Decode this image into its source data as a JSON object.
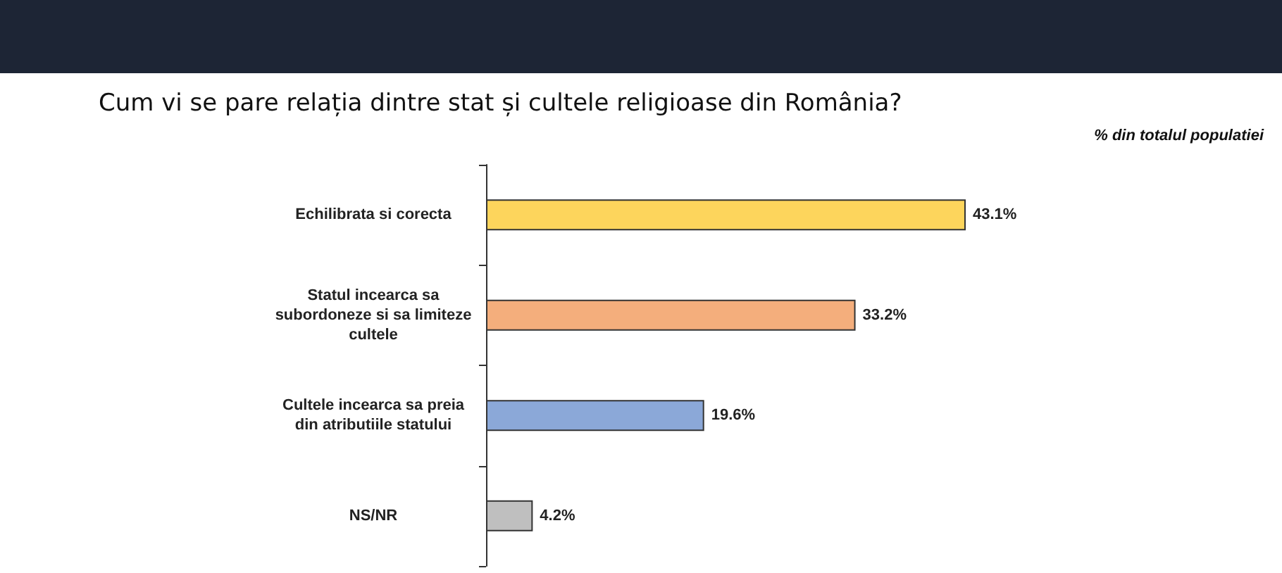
{
  "chart_data": {
    "type": "bar",
    "orientation": "horizontal",
    "title": "Cum vi se pare relația dintre stat și cultele religioase din România?",
    "subtitle": "% din totalul populatiei",
    "categories": [
      "Echilibrata si corecta",
      "Statul incearca sa\nsubordoneze si sa limiteze\ncultele",
      "Cultele incearca sa preia\ndin atributiile statului",
      "NS/NR"
    ],
    "values": [
      43.1,
      33.2,
      19.6,
      4.2
    ],
    "colors": [
      "#fdd55c",
      "#f4ae7c",
      "#8ba8d8",
      "#bfbfbf"
    ],
    "value_labels": [
      "43.1%",
      "33.2%",
      "19.6%",
      "4.2%"
    ]
  }
}
